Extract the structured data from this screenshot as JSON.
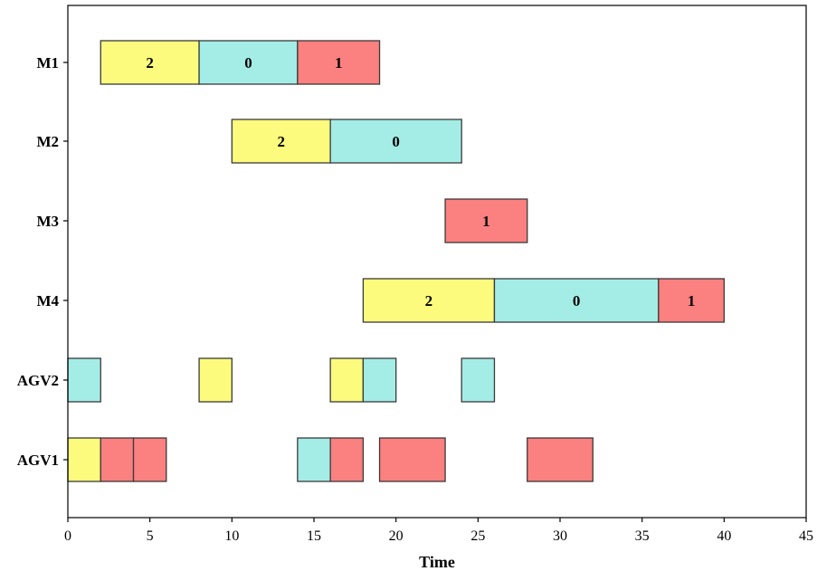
{
  "chart_data": {
    "type": "gantt",
    "xlabel": "Time",
    "xlim": [
      0,
      45
    ],
    "xticks": [
      0,
      5,
      10,
      15,
      20,
      25,
      30,
      35,
      40,
      45
    ],
    "rows": [
      "M1",
      "M2",
      "M3",
      "M4",
      "AGV2",
      "AGV1"
    ],
    "job_colors": {
      "0": "#a4ede6",
      "1": "#fb8080",
      "2": "#fdfb7d"
    },
    "grid": false,
    "legend": "none",
    "tasks": [
      {
        "row": "M1",
        "start": 2,
        "end": 8,
        "job": "2",
        "label": "2"
      },
      {
        "row": "M1",
        "start": 8,
        "end": 14,
        "job": "0",
        "label": "0"
      },
      {
        "row": "M1",
        "start": 14,
        "end": 19,
        "job": "1",
        "label": "1"
      },
      {
        "row": "M2",
        "start": 10,
        "end": 16,
        "job": "2",
        "label": "2"
      },
      {
        "row": "M2",
        "start": 16,
        "end": 24,
        "job": "0",
        "label": "0"
      },
      {
        "row": "M3",
        "start": 23,
        "end": 28,
        "job": "1",
        "label": "1"
      },
      {
        "row": "M4",
        "start": 18,
        "end": 26,
        "job": "2",
        "label": "2"
      },
      {
        "row": "M4",
        "start": 26,
        "end": 36,
        "job": "0",
        "label": "0"
      },
      {
        "row": "M4",
        "start": 36,
        "end": 40,
        "job": "1",
        "label": "1"
      },
      {
        "row": "AGV2",
        "start": 0,
        "end": 2,
        "job": "0",
        "label": ""
      },
      {
        "row": "AGV2",
        "start": 8,
        "end": 10,
        "job": "2",
        "label": ""
      },
      {
        "row": "AGV2",
        "start": 16,
        "end": 18,
        "job": "2",
        "label": ""
      },
      {
        "row": "AGV2",
        "start": 18,
        "end": 20,
        "job": "0",
        "label": ""
      },
      {
        "row": "AGV2",
        "start": 24,
        "end": 26,
        "job": "0",
        "label": ""
      },
      {
        "row": "AGV1",
        "start": 0,
        "end": 2,
        "job": "2",
        "label": ""
      },
      {
        "row": "AGV1",
        "start": 2,
        "end": 4,
        "job": "1",
        "label": ""
      },
      {
        "row": "AGV1",
        "start": 4,
        "end": 6,
        "job": "1",
        "label": ""
      },
      {
        "row": "AGV1",
        "start": 14,
        "end": 16,
        "job": "0",
        "label": ""
      },
      {
        "row": "AGV1",
        "start": 16,
        "end": 18,
        "job": "1",
        "label": ""
      },
      {
        "row": "AGV1",
        "start": 19,
        "end": 23,
        "job": "1",
        "label": ""
      },
      {
        "row": "AGV1",
        "start": 28,
        "end": 32,
        "job": "1",
        "label": ""
      }
    ]
  }
}
